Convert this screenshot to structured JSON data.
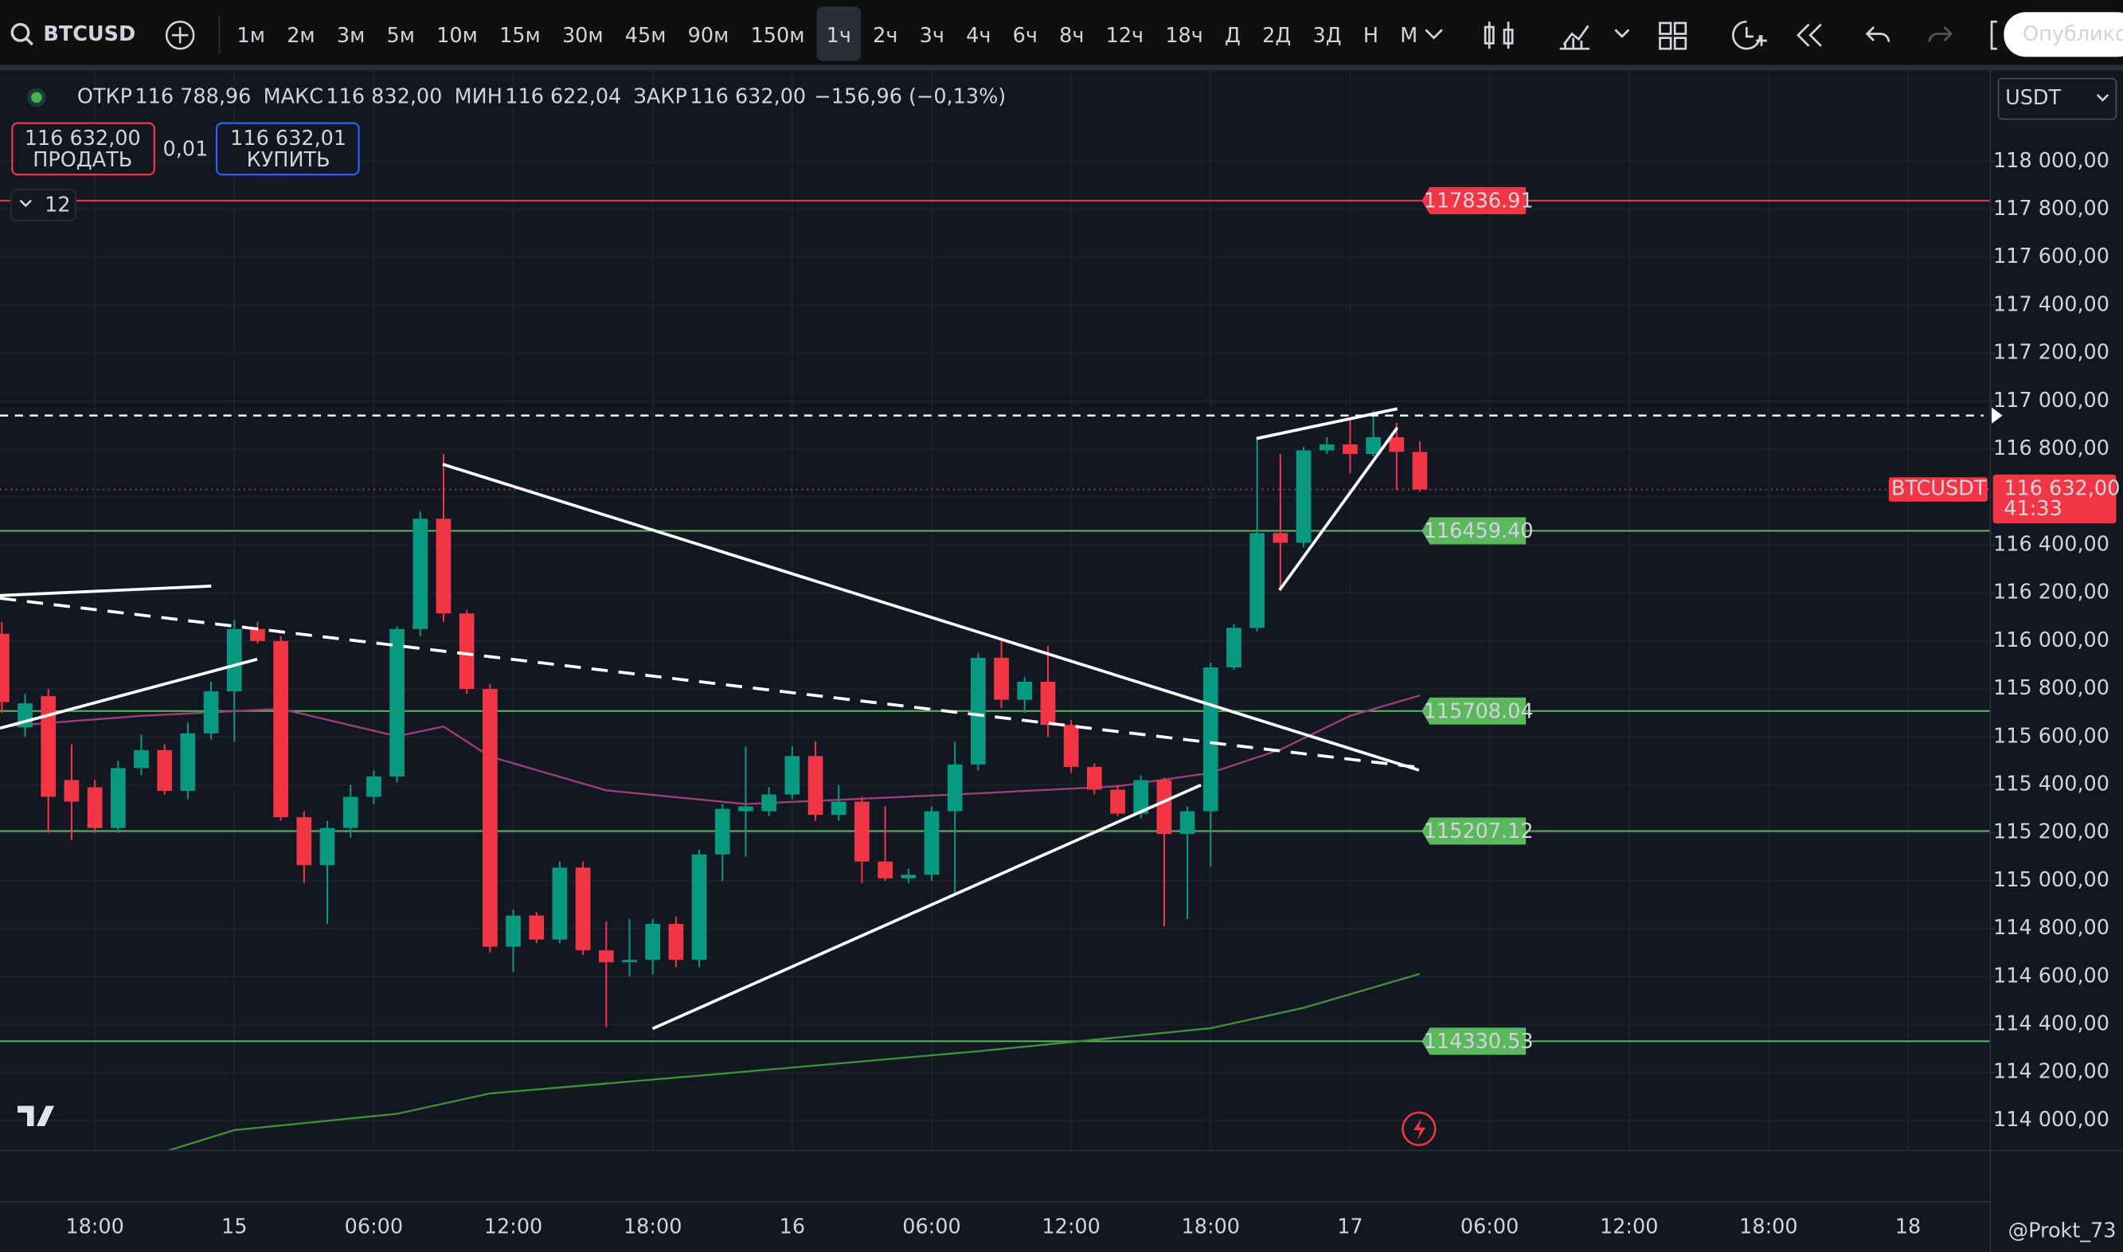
{
  "toolbar": {
    "symbol": "BTCUSD",
    "intervals": [
      "1м",
      "2м",
      "3м",
      "5м",
      "10м",
      "15м",
      "30м",
      "45м",
      "90м",
      "150м",
      "1ч",
      "2ч",
      "3ч",
      "4ч",
      "6ч",
      "8ч",
      "12ч",
      "18ч",
      "Д",
      "2Д",
      "3Д",
      "Н",
      "М"
    ],
    "active": "1ч",
    "publish": "Опублико"
  },
  "legend": {
    "items": [
      {
        "label": "ОТКР",
        "value": "116 788,96"
      },
      {
        "label": "МАКС",
        "value": "116 832,00"
      },
      {
        "label": "МИН",
        "value": "116 622,04"
      },
      {
        "label": "ЗАКР",
        "value": "116 632,00"
      }
    ],
    "change": "−156,96 (−0,13%)"
  },
  "trade": {
    "sell_price": "116 632,00",
    "sell_label": "ПРОДАТЬ",
    "quantity": "0,01",
    "buy_price": "116 632,01",
    "buy_label": "КУПИТЬ"
  },
  "indicators_count": 12,
  "currency": "USDT",
  "watermark": "@Prokt_73",
  "chart_data": {
    "type": "candlestick",
    "up_color": "#089981",
    "down_color": "#f23645",
    "grid": true,
    "x": [
      14,
      15,
      16,
      17,
      18,
      19,
      20,
      21,
      22,
      23,
      24,
      25,
      26,
      27,
      28,
      29,
      30,
      31,
      32,
      33,
      34,
      35,
      36,
      37,
      38,
      39,
      40,
      41,
      42,
      43,
      44,
      45,
      46,
      47,
      48,
      49,
      50,
      51,
      52,
      53,
      54,
      55,
      56,
      57,
      58,
      59,
      60,
      61,
      62,
      63,
      64,
      65,
      66,
      67,
      68,
      69,
      70,
      71,
      72,
      73,
      74,
      75
    ],
    "open": [
      116030,
      115640,
      115770,
      115420,
      115390,
      115220,
      115470,
      115545,
      115375,
      115615,
      115790,
      116050,
      116000,
      115265,
      115065,
      115220,
      115350,
      115435,
      116050,
      116510,
      116115,
      115800,
      114725,
      114855,
      114755,
      115055,
      114710,
      114660,
      114670,
      114820,
      114670,
      115110,
      115290,
      115290,
      115360,
      115520,
      115275,
      115330,
      115080,
      115010,
      115025,
      115290,
      115485,
      115930,
      115755,
      115830,
      115650,
      115475,
      115380,
      115280,
      115420,
      115195,
      115290,
      115890,
      116055,
      116450,
      116410,
      116795,
      116820,
      116780,
      116850,
      116788.96
    ],
    "high": [
      116080,
      115780,
      115800,
      115570,
      115420,
      115500,
      115610,
      115570,
      115660,
      115830,
      116090,
      116080,
      116020,
      115290,
      115250,
      115400,
      115460,
      116060,
      116540,
      116780,
      116130,
      115820,
      114880,
      114870,
      115080,
      115080,
      114830,
      114840,
      114840,
      114850,
      115130,
      115320,
      115560,
      115390,
      115560,
      115580,
      115400,
      115350,
      115310,
      115050,
      115310,
      115580,
      115950,
      116000,
      115850,
      115980,
      115670,
      115490,
      115400,
      115440,
      115430,
      115310,
      115910,
      116070,
      116840,
      116780,
      116810,
      116850,
      116920,
      116960,
      116910,
      116832
    ],
    "low": [
      115700,
      115600,
      115200,
      115170,
      115200,
      115200,
      115440,
      115360,
      115340,
      115590,
      115580,
      115990,
      115250,
      114990,
      114820,
      115180,
      115320,
      115410,
      116020,
      116080,
      115780,
      114700,
      114620,
      114740,
      114740,
      114690,
      114390,
      114600,
      114610,
      114640,
      114640,
      115000,
      115100,
      115270,
      115340,
      115250,
      115250,
      114990,
      115000,
      114990,
      115000,
      114940,
      115460,
      115720,
      115700,
      115600,
      115450,
      115360,
      115270,
      115260,
      114810,
      114840,
      115060,
      115880,
      116040,
      116220,
      116390,
      116780,
      116700,
      116770,
      116630,
      116622.04
    ],
    "close": [
      115745,
      115740,
      115350,
      115330,
      115220,
      115470,
      115545,
      115375,
      115615,
      115790,
      116050,
      116000,
      115265,
      115065,
      115220,
      115350,
      115435,
      116050,
      116510,
      116115,
      115800,
      114725,
      114855,
      114755,
      115055,
      114710,
      114660,
      114670,
      114820,
      114670,
      115110,
      115300,
      115310,
      115360,
      115520,
      115275,
      115330,
      115080,
      115010,
      115025,
      115290,
      115485,
      115930,
      115755,
      115830,
      115650,
      115475,
      115380,
      115280,
      115420,
      115195,
      115290,
      115890,
      116055,
      116450,
      116410,
      116795,
      116820,
      116780,
      116850,
      116788.96,
      116632
    ],
    "series": [
      {
        "color": "#9c3f7c",
        "x": [
          14,
          20,
          26,
          31,
          33,
          35,
          40,
          46,
          55,
          62,
          66,
          69,
          72,
          75
        ],
        "values": [
          115643,
          115688,
          115717,
          115603,
          115643,
          115518,
          115377,
          115320,
          115360,
          115394,
          115450,
          115547,
          115688,
          115773
        ]
      },
      {
        "color": "#3f8f3a",
        "x": [
          21,
          24,
          31,
          35,
          44,
          56,
          66,
          70,
          75
        ],
        "values": [
          113870,
          113960,
          114028,
          114113,
          114187,
          114289,
          114385,
          114470,
          114612
        ]
      }
    ],
    "levels": [
      {
        "value": 117836.91,
        "label": "117836.91",
        "color": "#f23645"
      },
      {
        "value": 116459.4,
        "label": "116459.40",
        "color": "#5cb85c"
      },
      {
        "value": 115708.04,
        "label": "115708.04",
        "color": "#5cb85c"
      },
      {
        "value": 115207.12,
        "label": "115207.12",
        "color": "#5cb85c"
      },
      {
        "value": 114330.53,
        "label": "114330.53",
        "color": "#5cb85c"
      }
    ],
    "last_price": {
      "symbol": "BTCUSDT",
      "value": 116632,
      "label": "116 632,00",
      "countdown": "41:33"
    },
    "xlim": [
      13.92,
      99.54
    ],
    "xticks": [
      {
        "value": 18,
        "label": "18:00"
      },
      {
        "value": 24,
        "label": "15"
      },
      {
        "value": 30,
        "label": "06:00"
      },
      {
        "value": 36,
        "label": "12:00"
      },
      {
        "value": 42,
        "label": "18:00"
      },
      {
        "value": 48,
        "label": "16"
      },
      {
        "value": 54,
        "label": "06:00"
      },
      {
        "value": 60,
        "label": "12:00"
      },
      {
        "value": 66,
        "label": "18:00"
      },
      {
        "value": 72,
        "label": "17"
      },
      {
        "value": 78,
        "label": "06:00"
      },
      {
        "value": 84,
        "label": "12:00"
      },
      {
        "value": 90,
        "label": "18:00"
      },
      {
        "value": 96,
        "label": "18"
      }
    ],
    "ylim": [
      113875,
      118380
    ],
    "yticks": [
      {
        "value": 114000,
        "label": "114 000,00"
      },
      {
        "value": 114200,
        "label": "114 200,00"
      },
      {
        "value": 114400,
        "label": "114 400,00"
      },
      {
        "value": 114600,
        "label": "114 600,00"
      },
      {
        "value": 114800,
        "label": "114 800,00"
      },
      {
        "value": 115000,
        "label": "115 000,00"
      },
      {
        "value": 115200,
        "label": "115 200,00"
      },
      {
        "value": 115400,
        "label": "115 400,00"
      },
      {
        "value": 115600,
        "label": "115 600,00"
      },
      {
        "value": 115800,
        "label": "115 800,00"
      },
      {
        "value": 116000,
        "label": "116 000,00"
      },
      {
        "value": 116200,
        "label": "116 200,00"
      },
      {
        "value": 116400,
        "label": "116 400,00"
      },
      {
        "value": 116600,
        "label": "116 600,00"
      },
      {
        "value": 116800,
        "label": "116 800,00"
      },
      {
        "value": 117000,
        "label": "117 000,00"
      },
      {
        "value": 117200,
        "label": "117 200,00"
      },
      {
        "value": 117400,
        "label": "117 400,00"
      },
      {
        "value": 117600,
        "label": "117 600,00"
      },
      {
        "value": 117800,
        "label": "117 800,00"
      },
      {
        "value": 118000,
        "label": "118 000,00"
      }
    ]
  }
}
